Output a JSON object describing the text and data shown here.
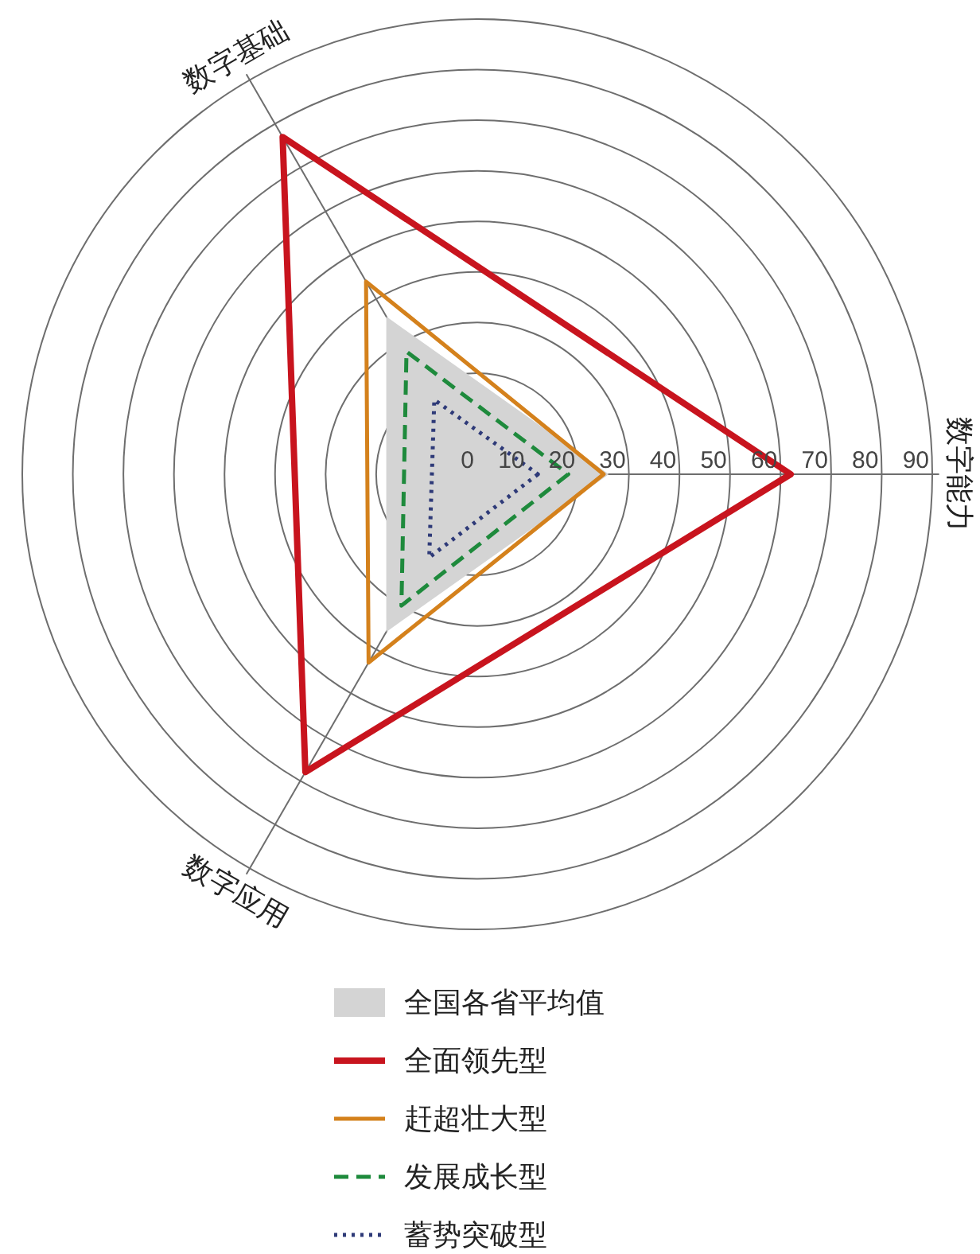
{
  "chart_data": {
    "type": "radar",
    "categories": [
      "数字能力",
      "数字应用",
      "数字基础"
    ],
    "ylim": [
      0,
      90
    ],
    "yticks": [
      0,
      10,
      20,
      30,
      40,
      50,
      60,
      70,
      80,
      90
    ],
    "grid": true,
    "legend": "bottom",
    "series": [
      {
        "name": "全国各省平均值",
        "type": "area",
        "color": "#d4d4d4",
        "values": [
          26,
          36,
          36
        ]
      },
      {
        "name": "全面领先型",
        "line_style": "solid",
        "color": "#c8141e",
        "values": [
          62,
          68,
          77
        ]
      },
      {
        "name": "赶超壮大型",
        "line_style": "solid",
        "color": "#d4811c",
        "values": [
          25,
          43,
          44
        ]
      },
      {
        "name": "发展成长型",
        "line_style": "dashed",
        "color": "#1e8a3c",
        "values": [
          18,
          30,
          28
        ]
      },
      {
        "name": "蓄势突破型",
        "line_style": "dotted",
        "color": "#2e3a78",
        "values": [
          12,
          19,
          17
        ]
      }
    ]
  }
}
